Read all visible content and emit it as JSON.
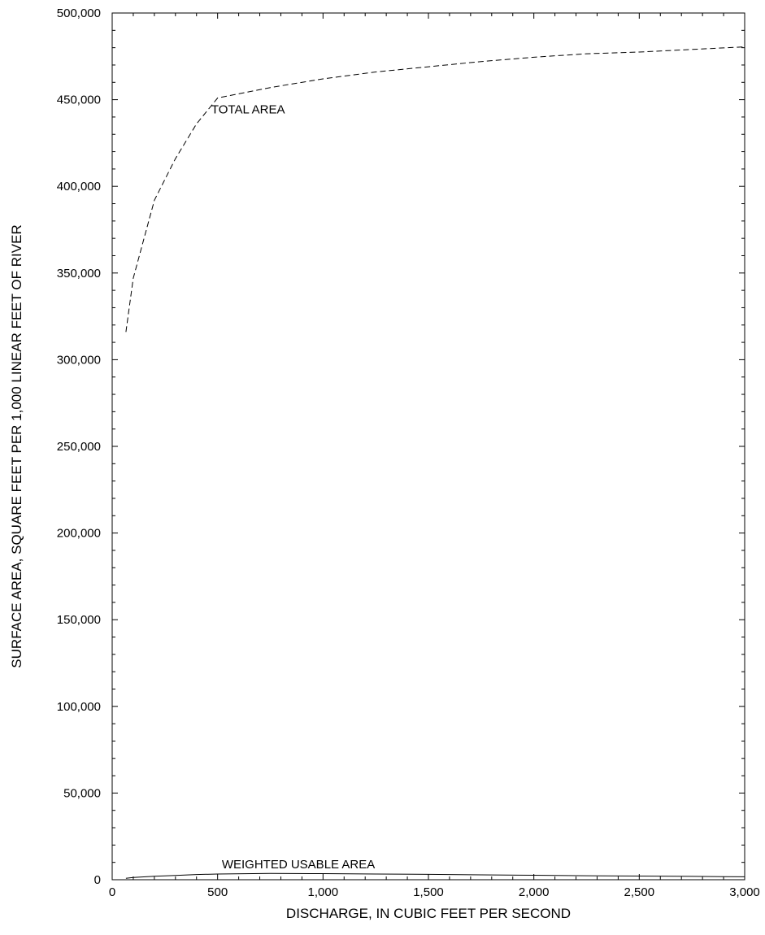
{
  "chart_data": {
    "type": "line",
    "title": "",
    "xlabel": "DISCHARGE, IN CUBIC FEET PER SECOND",
    "ylabel": "SURFACE AREA, SQUARE FEET PER 1,000 LINEAR FEET OF RIVER",
    "xlim": [
      0,
      3000
    ],
    "ylim": [
      0,
      500000
    ],
    "x_ticks": [
      0,
      500,
      1000,
      1500,
      2000,
      2500,
      3000
    ],
    "x_tick_labels": [
      "0",
      "500",
      "1,000",
      "1,500",
      "2,000",
      "2,500",
      "3,000"
    ],
    "y_ticks": [
      0,
      50000,
      100000,
      150000,
      200000,
      250000,
      300000,
      350000,
      400000,
      450000,
      500000
    ],
    "y_tick_labels": [
      "0",
      "50,000",
      "100,000",
      "150,000",
      "200,000",
      "250,000",
      "300,000",
      "350,000",
      "400,000",
      "450,000",
      "500,000"
    ],
    "grid": false,
    "series": [
      {
        "name": "TOTAL AREA",
        "style": "dashed",
        "x": [
          65,
          100,
          200,
          300,
          400,
          500,
          750,
          1000,
          1250,
          1500,
          1750,
          2000,
          2250,
          2500,
          2750,
          3000
        ],
        "y": [
          316000,
          347000,
          392000,
          416000,
          436000,
          451000,
          457000,
          462000,
          466000,
          469000,
          472000,
          474500,
          476500,
          477500,
          479000,
          480500
        ]
      },
      {
        "name": "WEIGHTED USABLE AREA",
        "style": "solid",
        "x": [
          65,
          100,
          200,
          300,
          400,
          500,
          750,
          1000,
          1250,
          1500,
          1750,
          2000,
          2250,
          2500,
          2750,
          3000
        ],
        "y": [
          800,
          1300,
          2000,
          2500,
          3000,
          3300,
          3600,
          3500,
          3300,
          3100,
          2800,
          2600,
          2300,
          2100,
          1900,
          1700
        ]
      }
    ],
    "annotations": [
      {
        "text": "TOTAL AREA",
        "x": 470,
        "y": 442000
      },
      {
        "text": "WEIGHTED USABLE AREA",
        "x": 520,
        "y": 6500
      }
    ]
  }
}
